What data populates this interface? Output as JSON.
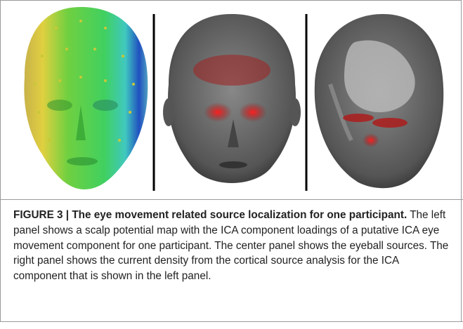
{
  "caption": {
    "label": "FIGURE 3 | The eye movement related source localization for one participant.",
    "text": "The left panel shows a scalp potential map with the ICA component loadings of a putative ICA eye movement component for one participant. The center panel shows the eyeball sources. The right panel shows the current density from the cortical source analysis for the ICA component that is shown in the left panel."
  }
}
